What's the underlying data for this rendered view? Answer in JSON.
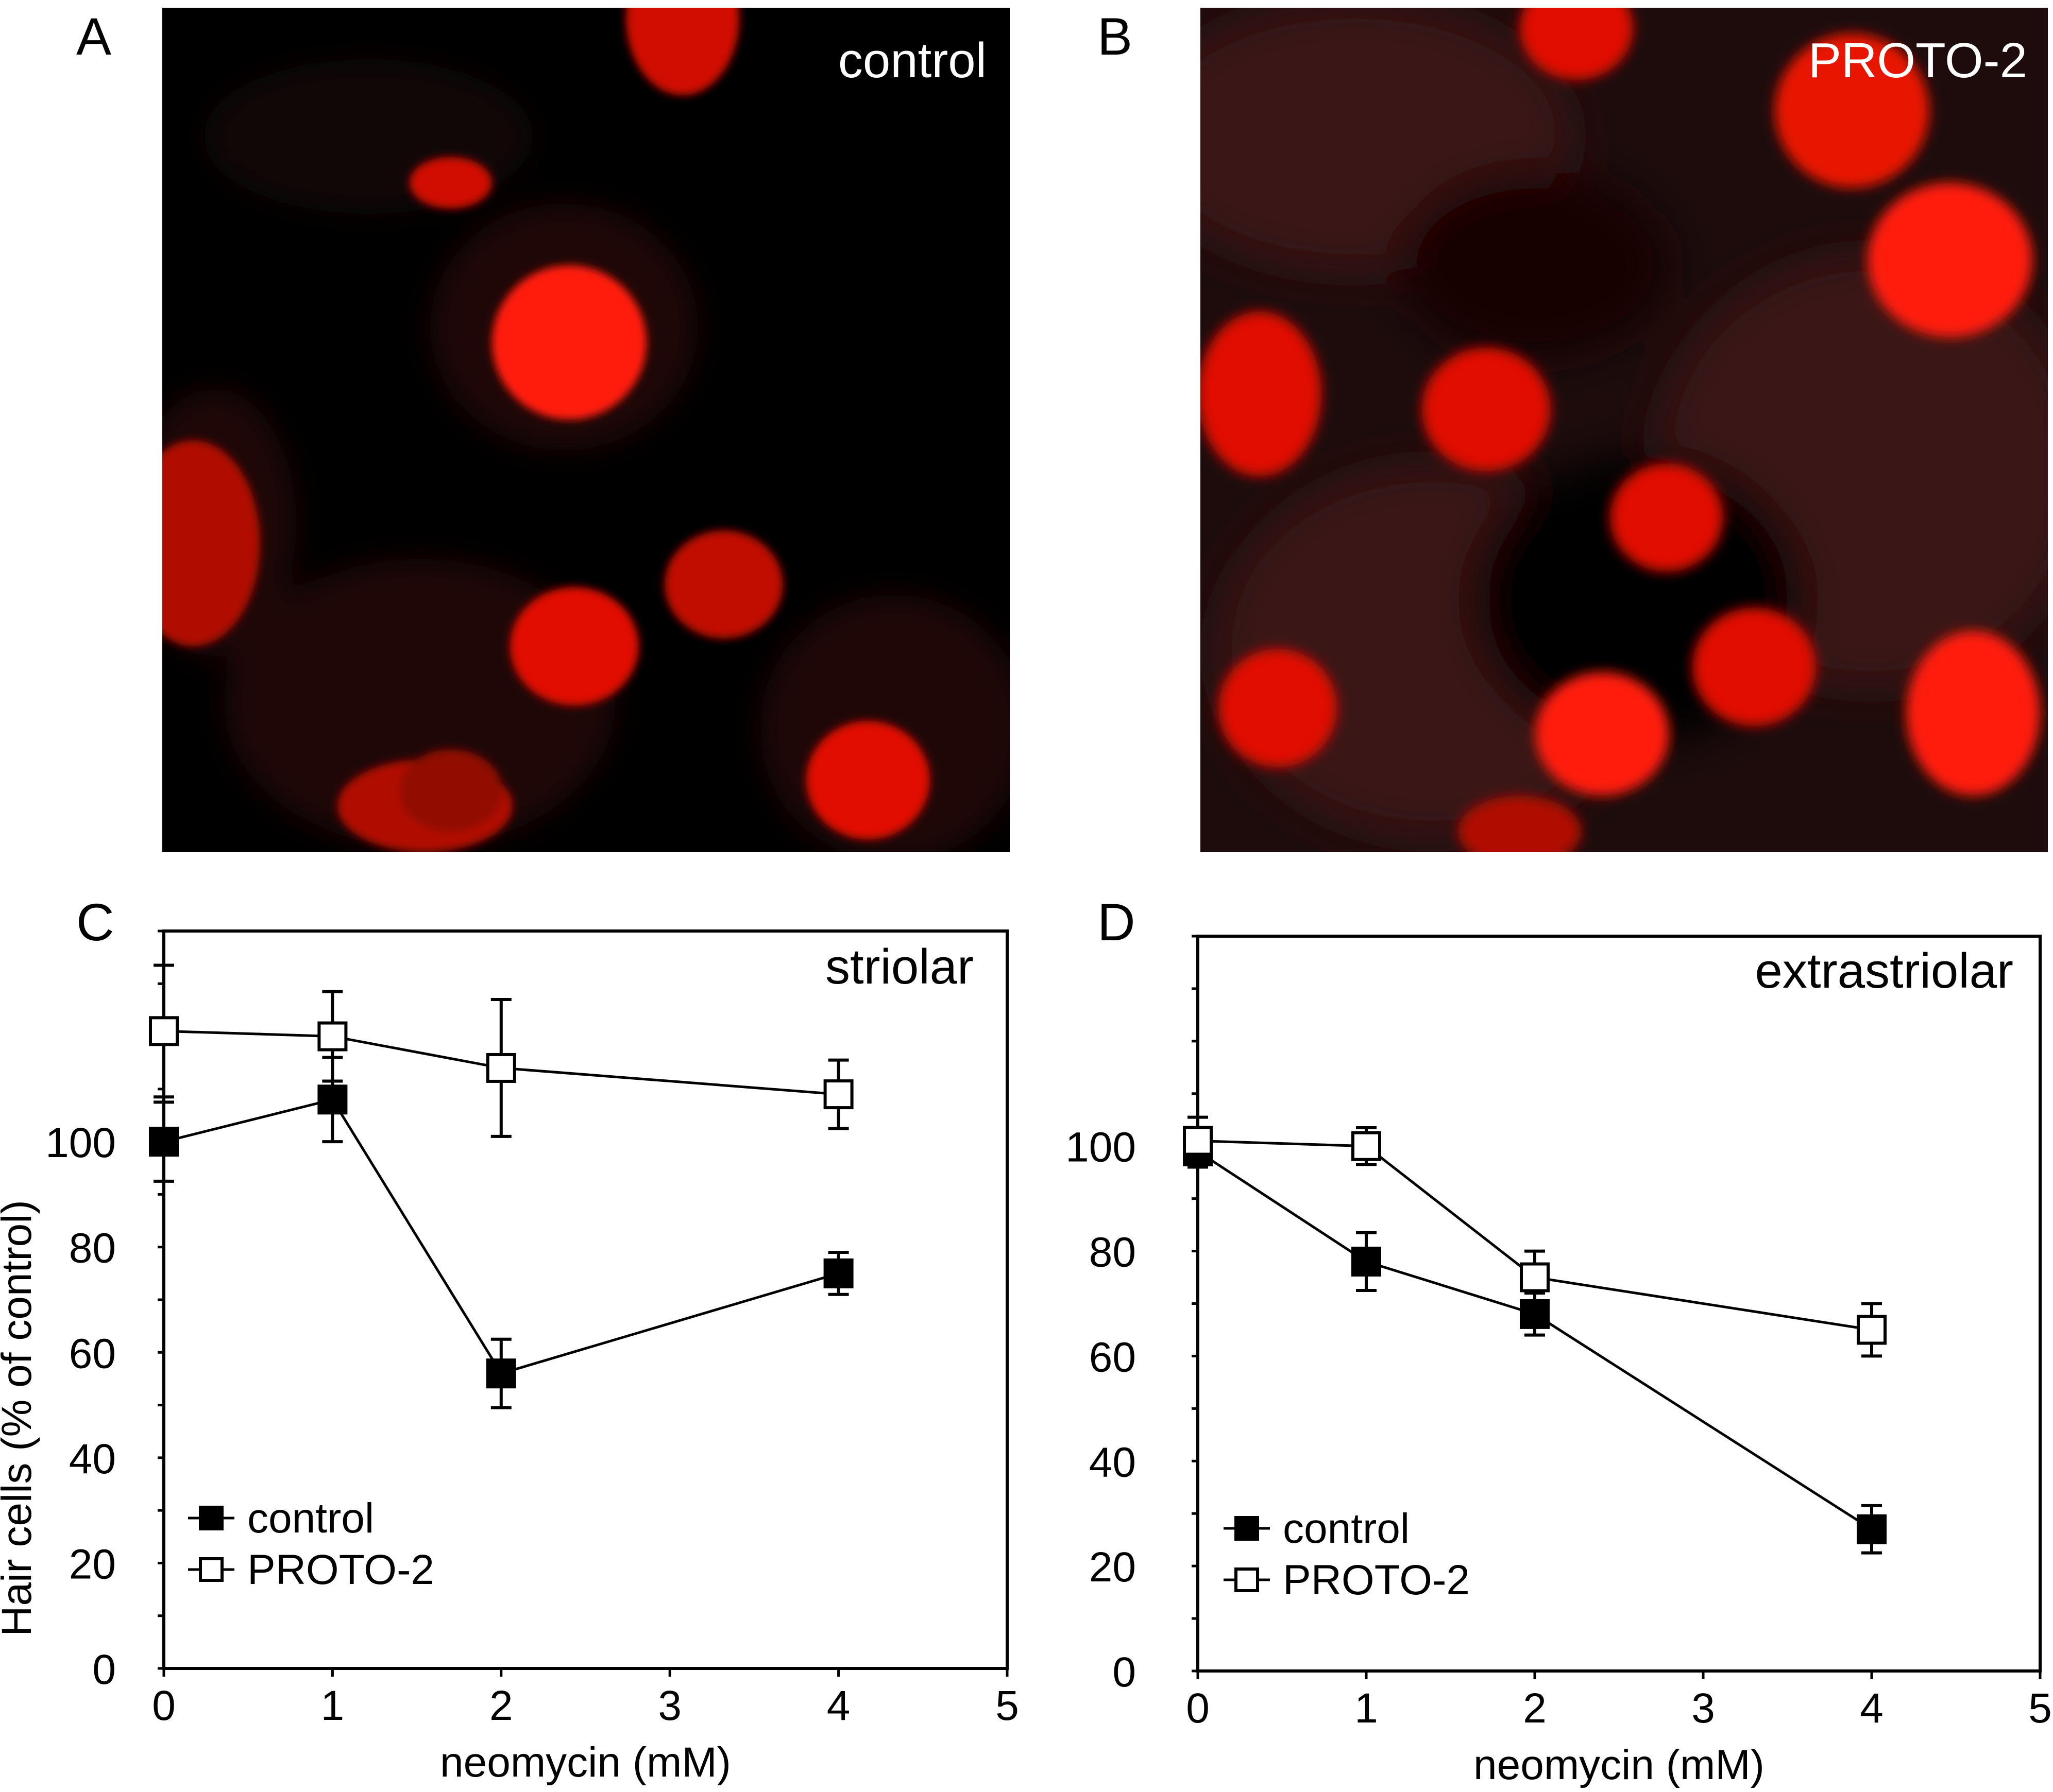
{
  "panels": {
    "a": {
      "letter": "A",
      "label": "control"
    },
    "b": {
      "letter": "B",
      "label": "PROTO-2"
    },
    "c": {
      "letter": "C"
    },
    "d": {
      "letter": "D"
    }
  },
  "colors": {
    "micro_cell": "#e01000",
    "micro_background": "#000000",
    "control_marker": "#000000",
    "proto2_marker": "#ffffff"
  },
  "chart_data": [
    {
      "type": "scatter",
      "panel": "C",
      "title": "striolar",
      "xlabel": "neomycin (mM)",
      "ylabel": "Hair cells (% of control)",
      "xlim": [
        0,
        5
      ],
      "ylim": [
        0,
        140
      ],
      "xticks": [
        "0",
        "1",
        "2",
        "3",
        "4",
        "5"
      ],
      "yticks": [
        "0",
        "20",
        "40",
        "60",
        "80",
        "100"
      ],
      "legend_position": "bottom-left",
      "series": [
        {
          "name": "control",
          "marker": "filled-square",
          "x": [
            0,
            1,
            2,
            4
          ],
          "y": [
            100,
            108,
            56,
            75
          ],
          "err": [
            7.5,
            8,
            6.5,
            4
          ]
        },
        {
          "name": "PROTO-2",
          "marker": "open-square",
          "x": [
            0,
            1,
            2,
            4
          ],
          "y": [
            121,
            120,
            114,
            109
          ],
          "err": [
            12.5,
            8.5,
            13,
            6.5
          ]
        }
      ]
    },
    {
      "type": "scatter",
      "panel": "D",
      "title": "extrastriolar",
      "xlabel": "neomycin (mM)",
      "ylabel": "",
      "xlim": [
        0,
        5
      ],
      "ylim": [
        0,
        140
      ],
      "xticks": [
        "0",
        "1",
        "2",
        "3",
        "4",
        "5"
      ],
      "yticks": [
        "0",
        "20",
        "40",
        "60",
        "80",
        "100"
      ],
      "legend_position": "bottom-left",
      "series": [
        {
          "name": "control",
          "marker": "filled-square",
          "x": [
            0,
            1,
            2,
            4
          ],
          "y": [
            99,
            78,
            68,
            27
          ],
          "err": [
            3,
            5.5,
            4,
            4.5
          ]
        },
        {
          "name": "PROTO-2",
          "marker": "open-square",
          "x": [
            0,
            1,
            2,
            4
          ],
          "y": [
            101,
            100,
            75,
            65
          ],
          "err": [
            4.5,
            3.5,
            5,
            5
          ]
        }
      ]
    }
  ]
}
